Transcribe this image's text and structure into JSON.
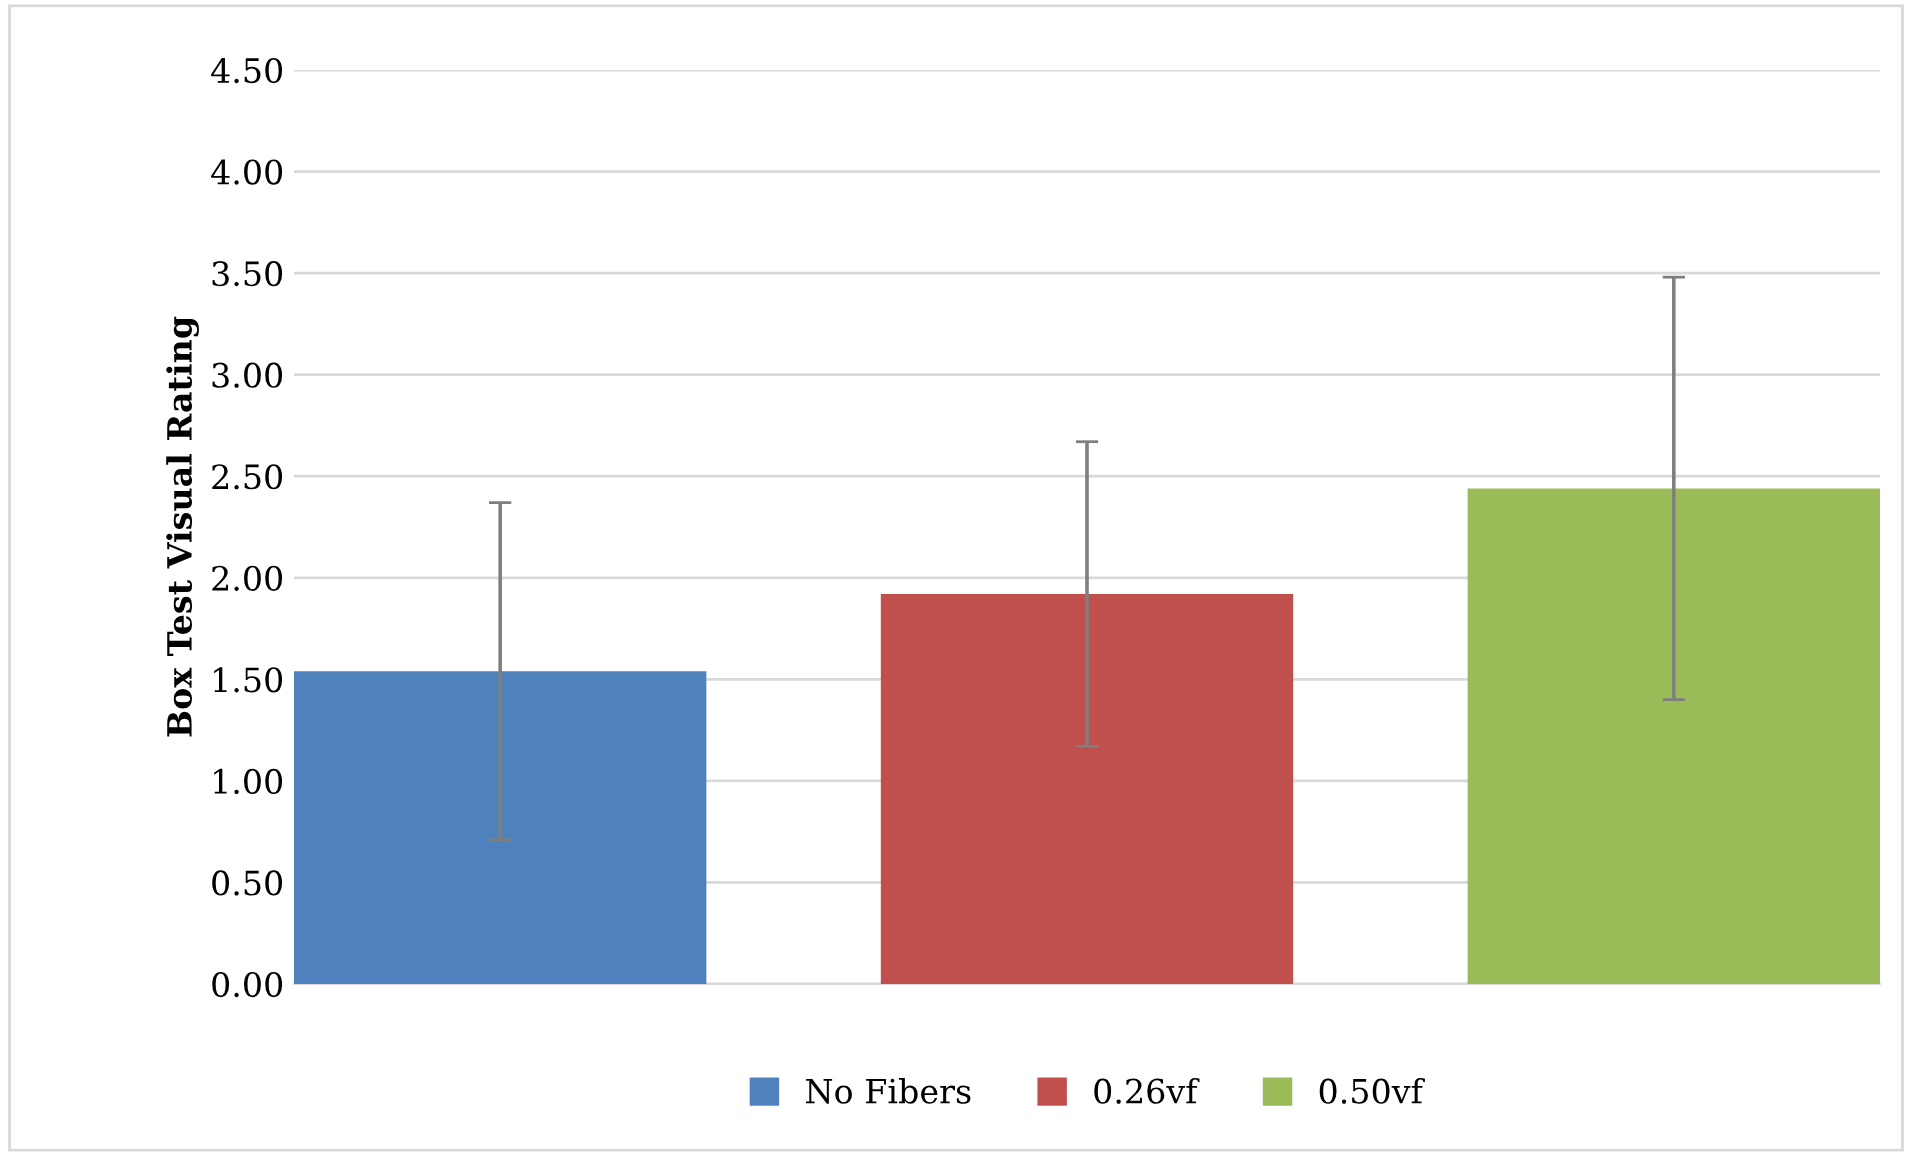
{
  "chart_data": {
    "type": "bar",
    "ylabel": "Box Test Visual Rating",
    "categories": [
      null
    ],
    "series": [
      {
        "name": "No Fibers",
        "color": "#4f81bd",
        "values": [
          1.54
        ],
        "errors": [
          0.83
        ]
      },
      {
        "name": "0.26vf",
        "color": "#c0504d",
        "values": [
          1.92
        ],
        "errors": [
          0.75
        ]
      },
      {
        "name": "0.50vf",
        "color": "#9bbb59",
        "values": [
          2.44
        ],
        "errors": [
          1.04
        ]
      }
    ],
    "ylim": [
      0,
      4.5
    ],
    "yticks": [
      {
        "value": 0,
        "label": "0.00"
      },
      {
        "value": 0.5,
        "label": "0.50"
      },
      {
        "value": 1,
        "label": "1.00"
      },
      {
        "value": 1.5,
        "label": "1.50"
      },
      {
        "value": 2,
        "label": "2.00"
      },
      {
        "value": 2.5,
        "label": "2.50"
      },
      {
        "value": 3,
        "label": "3.00"
      },
      {
        "value": 3.5,
        "label": "3.50"
      },
      {
        "value": 4,
        "label": "4.00"
      },
      {
        "value": 4.5,
        "label": "4.50"
      }
    ],
    "grid": "y",
    "legend": "bottom"
  }
}
